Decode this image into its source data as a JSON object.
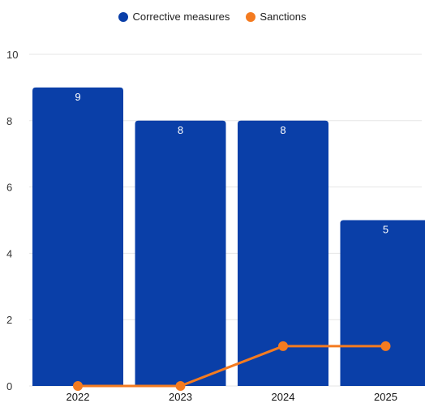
{
  "chart_data": {
    "type": "bar",
    "categories": [
      "2022",
      "2023",
      "2024",
      "2025"
    ],
    "series": [
      {
        "name": "Corrective measures",
        "kind": "bar",
        "values": [
          9,
          8,
          8,
          5
        ],
        "color": "#0a3fa8",
        "data_labels": [
          "9",
          "8",
          "8",
          "5"
        ]
      },
      {
        "name": "Sanctions",
        "kind": "line",
        "values": [
          0,
          0,
          1.2,
          1.2
        ],
        "color": "#f47b20"
      }
    ],
    "yticks": [
      "0",
      "2",
      "4",
      "6",
      "8",
      "10"
    ],
    "ylim": [
      0,
      10
    ],
    "grid": true,
    "legend_position": "top-center"
  }
}
